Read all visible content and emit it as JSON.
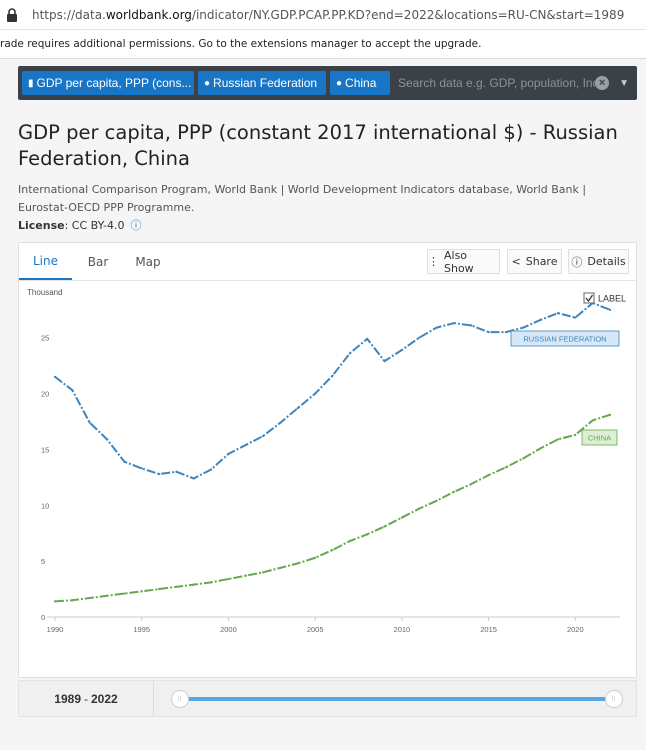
{
  "browser": {
    "url_prefix": "https://data.",
    "url_domain": "worldbank.org",
    "url_path": "/indicator/NY.GDP.PCAP.PP.KD?end=2022&locations=RU-CN&start=1989"
  },
  "notice": "rade requires additional permissions. Go to the extensions manager to accept the upgrade.",
  "search": {
    "chip_indicator": "GDP per capita, PPP (cons...",
    "chip_country1": "Russian Federation",
    "chip_country2": "China",
    "placeholder": "Search data e.g. GDP, population, Indon"
  },
  "page": {
    "title": "GDP per capita, PPP (constant 2017 international $) - Russian Federation, China",
    "source": "International Comparison Program, World Bank | World Development Indicators database, World Bank | Eurostat-OECD PPP Programme.",
    "license_label": "License",
    "license_value": ": CC BY-4.0"
  },
  "tabs": [
    "Line",
    "Bar",
    "Map"
  ],
  "actions": {
    "also_show": "Also Show",
    "share": "Share",
    "details": "Details"
  },
  "label_toggle": "LABEL",
  "range": {
    "start": "1989",
    "end": "2022",
    "sep": "-"
  },
  "chart_data": {
    "type": "line",
    "ylabel": "Thousand",
    "ylim": [
      0,
      29
    ],
    "xlim": [
      1990,
      2022
    ],
    "x_ticks": [
      "1990",
      "1995",
      "2000",
      "2005",
      "2010",
      "2015",
      "2020"
    ],
    "y_ticks": [
      "0",
      "5",
      "10",
      "15",
      "20",
      "25"
    ],
    "grid": false,
    "x": [
      1990,
      1991,
      1992,
      1993,
      1994,
      1995,
      1996,
      1997,
      1998,
      1999,
      2000,
      2001,
      2002,
      2003,
      2004,
      2005,
      2006,
      2007,
      2008,
      2009,
      2010,
      2011,
      2012,
      2013,
      2014,
      2015,
      2016,
      2017,
      2018,
      2019,
      2020,
      2021,
      2022
    ],
    "series": [
      {
        "name": "RUSSIAN FEDERATION",
        "color": "#3d85bf",
        "label_bg": "#d6e8f7",
        "values": [
          21.5,
          20.3,
          17.4,
          15.9,
          13.9,
          13.3,
          12.8,
          13.0,
          12.4,
          13.2,
          14.6,
          15.4,
          16.2,
          17.4,
          18.7,
          20.0,
          21.6,
          23.6,
          24.9,
          22.9,
          23.9,
          25.0,
          25.9,
          26.3,
          26.1,
          25.5,
          25.5,
          25.9,
          26.6,
          27.2,
          26.8,
          28.1,
          27.5
        ]
      },
      {
        "name": "CHINA",
        "color": "#66a84f",
        "label_bg": "#dcefd5",
        "values": [
          1.4,
          1.5,
          1.7,
          1.9,
          2.1,
          2.3,
          2.5,
          2.7,
          2.9,
          3.1,
          3.4,
          3.7,
          4.0,
          4.4,
          4.8,
          5.3,
          6.0,
          6.8,
          7.4,
          8.1,
          8.9,
          9.7,
          10.4,
          11.2,
          11.9,
          12.7,
          13.4,
          14.2,
          15.1,
          15.9,
          16.3,
          17.6,
          18.1
        ]
      }
    ]
  }
}
